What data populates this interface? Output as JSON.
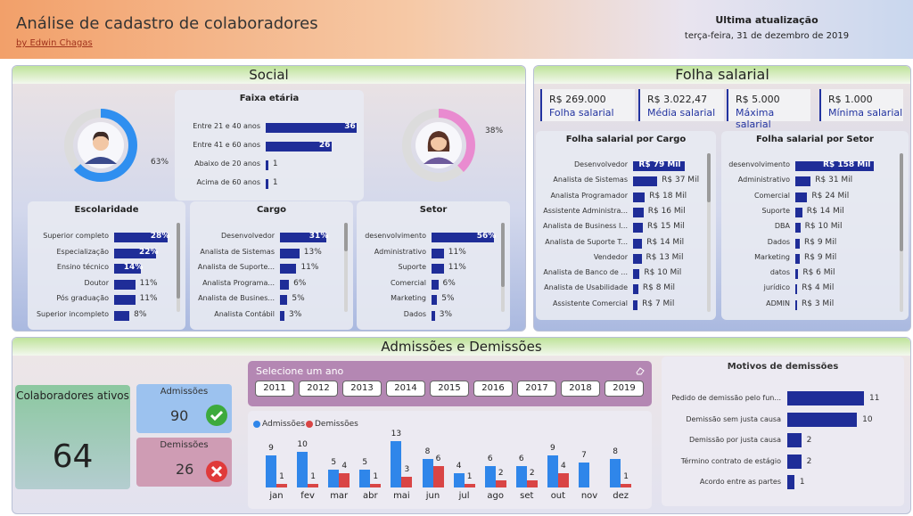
{
  "header": {
    "title": "Análise de cadastro de colaboradores",
    "author": "by Edwin Chagas",
    "update_label": "Ultima atualização",
    "update_date": "terça-feira, 31 de dezembro de 2019"
  },
  "social": {
    "title": "Social",
    "male_pct": "63%",
    "female_pct": "38%",
    "male_fraction": 0.63,
    "female_fraction": 0.38,
    "faixa": {
      "title": "Faixa etária",
      "rows": [
        {
          "label": "Entre 21 e 40 anos",
          "value": "36",
          "n": 36
        },
        {
          "label": "Entre 41 e 60 anos",
          "value": "26",
          "n": 26
        },
        {
          "label": "Abaixo de 20 anos",
          "value": "1",
          "n": 1
        },
        {
          "label": "Acima de 60 anos",
          "value": "1",
          "n": 1
        }
      ]
    },
    "escolaridade": {
      "title": "Escolaridade",
      "rows": [
        {
          "label": "Superior completo",
          "value": "28%",
          "n": 28
        },
        {
          "label": "Especialização",
          "value": "22%",
          "n": 22
        },
        {
          "label": "Ensino técnico",
          "value": "14%",
          "n": 14
        },
        {
          "label": "Doutor",
          "value": "11%",
          "n": 11
        },
        {
          "label": "Pós graduação",
          "value": "11%",
          "n": 11
        },
        {
          "label": "Superior incompleto",
          "value": "8%",
          "n": 8
        }
      ]
    },
    "cargo": {
      "title": "Cargo",
      "rows": [
        {
          "label": "Desenvolvedor",
          "value": "31%",
          "n": 31
        },
        {
          "label": "Analista de Sistemas",
          "value": "13%",
          "n": 13
        },
        {
          "label": "Analista de Suporte...",
          "value": "11%",
          "n": 11
        },
        {
          "label": "Analista Programa...",
          "value": "6%",
          "n": 6
        },
        {
          "label": "Analista de Busines...",
          "value": "5%",
          "n": 5
        },
        {
          "label": "Analista Contábil",
          "value": "3%",
          "n": 3
        }
      ]
    },
    "setor": {
      "title": "Setor",
      "rows": [
        {
          "label": "desenvolvimento",
          "value": "56%",
          "n": 56
        },
        {
          "label": "Administrativo",
          "value": "11%",
          "n": 11
        },
        {
          "label": "Suporte",
          "value": "11%",
          "n": 11
        },
        {
          "label": "Comercial",
          "value": "6%",
          "n": 6
        },
        {
          "label": "Marketing",
          "value": "5%",
          "n": 5
        },
        {
          "label": "Dados",
          "value": "3%",
          "n": 3
        }
      ]
    }
  },
  "folha": {
    "title": "Folha salarial",
    "kpis": [
      {
        "value": "R$ 269.000",
        "label": "Folha salarial"
      },
      {
        "value": "R$ 3.022,47",
        "label": "Média salarial"
      },
      {
        "value": "R$ 5.000",
        "label": "Máxima salarial"
      },
      {
        "value": "R$ 1.000",
        "label": "Mínima salarial"
      }
    ],
    "por_cargo": {
      "title": "Folha salarial por Cargo",
      "rows": [
        {
          "label": "Desenvolvedor",
          "value": "R$ 79 Mil",
          "n": 79
        },
        {
          "label": "Analista de Sistemas",
          "value": "R$ 37 Mil",
          "n": 37
        },
        {
          "label": "Analista Programador",
          "value": "R$ 18 Mil",
          "n": 18
        },
        {
          "label": "Assistente Administra...",
          "value": "R$ 16 Mil",
          "n": 16
        },
        {
          "label": "Analista de Business I...",
          "value": "R$ 15 Mil",
          "n": 15
        },
        {
          "label": "Analista de Suporte T...",
          "value": "R$ 14 Mil",
          "n": 14
        },
        {
          "label": "Vendedor",
          "value": "R$ 13 Mil",
          "n": 13
        },
        {
          "label": "Analista de Banco de ...",
          "value": "R$ 10 Mil",
          "n": 10
        },
        {
          "label": "Analista de Usabilidade",
          "value": "R$ 8 Mil",
          "n": 8
        },
        {
          "label": "Assistente Comercial",
          "value": "R$ 7 Mil",
          "n": 7
        }
      ]
    },
    "por_setor": {
      "title": "Folha salarial por Setor",
      "rows": [
        {
          "label": "desenvolvimento",
          "value": "R$ 158 Mil",
          "n": 158
        },
        {
          "label": "Administrativo",
          "value": "R$ 31 Mil",
          "n": 31
        },
        {
          "label": "Comercial",
          "value": "R$ 24 Mil",
          "n": 24
        },
        {
          "label": "Suporte",
          "value": "R$ 14 Mil",
          "n": 14
        },
        {
          "label": "DBA",
          "value": "R$ 10 Mil",
          "n": 10
        },
        {
          "label": "Dados",
          "value": "R$ 9 Mil",
          "n": 9
        },
        {
          "label": "Marketing",
          "value": "R$ 9 Mil",
          "n": 9
        },
        {
          "label": "datos",
          "value": "R$ 6 Mil",
          "n": 6
        },
        {
          "label": "jurídico",
          "value": "R$ 4 Mil",
          "n": 4
        },
        {
          "label": "ADMIN",
          "value": "R$ 3 Mil",
          "n": 3
        }
      ]
    }
  },
  "admissoes": {
    "title": "Admissões e Demissões",
    "ativos_label": "Colaboradores ativos",
    "ativos_value": "64",
    "admissoes_label": "Admissões",
    "admissoes_value": "90",
    "demissoes_label": "Demissões",
    "demissoes_value": "26",
    "slicer_title": "Selecione um ano",
    "years": [
      "2011",
      "2012",
      "2013",
      "2014",
      "2015",
      "2016",
      "2017",
      "2018",
      "2019"
    ],
    "legend_adm": "Admissões",
    "legend_dem": "Demissões",
    "motivos": {
      "title": "Motivos de demissões",
      "rows": [
        {
          "label": "Pedido de demissão pelo fun...",
          "value": "11",
          "n": 11
        },
        {
          "label": "Demissão sem justa causa",
          "value": "10",
          "n": 10
        },
        {
          "label": "Demissão por justa causa",
          "value": "2",
          "n": 2
        },
        {
          "label": "Término contrato de estágio",
          "value": "2",
          "n": 2
        },
        {
          "label": "Acordo entre as partes",
          "value": "1",
          "n": 1
        }
      ]
    }
  },
  "colors": {
    "bar": "#1f2d98",
    "admissoes": "#2f86ea",
    "demissoes": "#d94545",
    "male_ring": "#2f8ff0",
    "female_ring": "#e98bd0"
  },
  "chart_data": {
    "type": "bar",
    "categories": [
      "jan",
      "fev",
      "mar",
      "abr",
      "mai",
      "jun",
      "jul",
      "ago",
      "set",
      "out",
      "nov",
      "dez"
    ],
    "series": [
      {
        "name": "Admissões",
        "values": [
          9,
          10,
          5,
          5,
          13,
          8,
          4,
          6,
          6,
          9,
          7,
          8
        ]
      },
      {
        "name": "Demissões",
        "values": [
          1,
          1,
          4,
          1,
          3,
          6,
          1,
          2,
          2,
          4,
          null,
          1
        ]
      }
    ]
  }
}
